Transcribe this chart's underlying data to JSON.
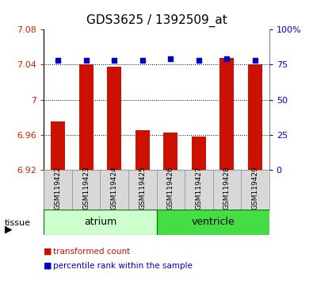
{
  "title": "GDS3625 / 1392509_at",
  "samples": [
    "GSM119422",
    "GSM119423",
    "GSM119424",
    "GSM119425",
    "GSM119426",
    "GSM119427",
    "GSM119428",
    "GSM119429"
  ],
  "red_values": [
    6.975,
    7.04,
    7.038,
    6.965,
    6.963,
    6.958,
    7.048,
    7.04
  ],
  "blue_values": [
    78,
    78,
    78,
    78,
    79,
    78,
    79,
    78
  ],
  "ylim_left": [
    6.92,
    7.08
  ],
  "ylim_right": [
    0,
    100
  ],
  "yticks_left": [
    6.92,
    6.96,
    7.0,
    7.04,
    7.08
  ],
  "yticks_right": [
    0,
    25,
    50,
    75,
    100
  ],
  "ytick_labels_left": [
    "6.92",
    "6.96",
    "7",
    "7.04",
    "7.08"
  ],
  "ytick_labels_right": [
    "0",
    "25",
    "50",
    "75",
    "100%"
  ],
  "hlines": [
    6.96,
    7.0,
    7.04
  ],
  "tissue_groups": [
    {
      "label": "atrium",
      "start": 0,
      "end": 3,
      "color": "#ccffcc"
    },
    {
      "label": "ventricle",
      "start": 4,
      "end": 7,
      "color": "#44dd44"
    }
  ],
  "bar_color": "#cc1100",
  "marker_color": "#0000cc",
  "bar_width": 0.5,
  "legend_items": [
    {
      "label": "transformed count",
      "color": "#cc1100"
    },
    {
      "label": "percentile rank within the sample",
      "color": "#0000cc"
    }
  ]
}
